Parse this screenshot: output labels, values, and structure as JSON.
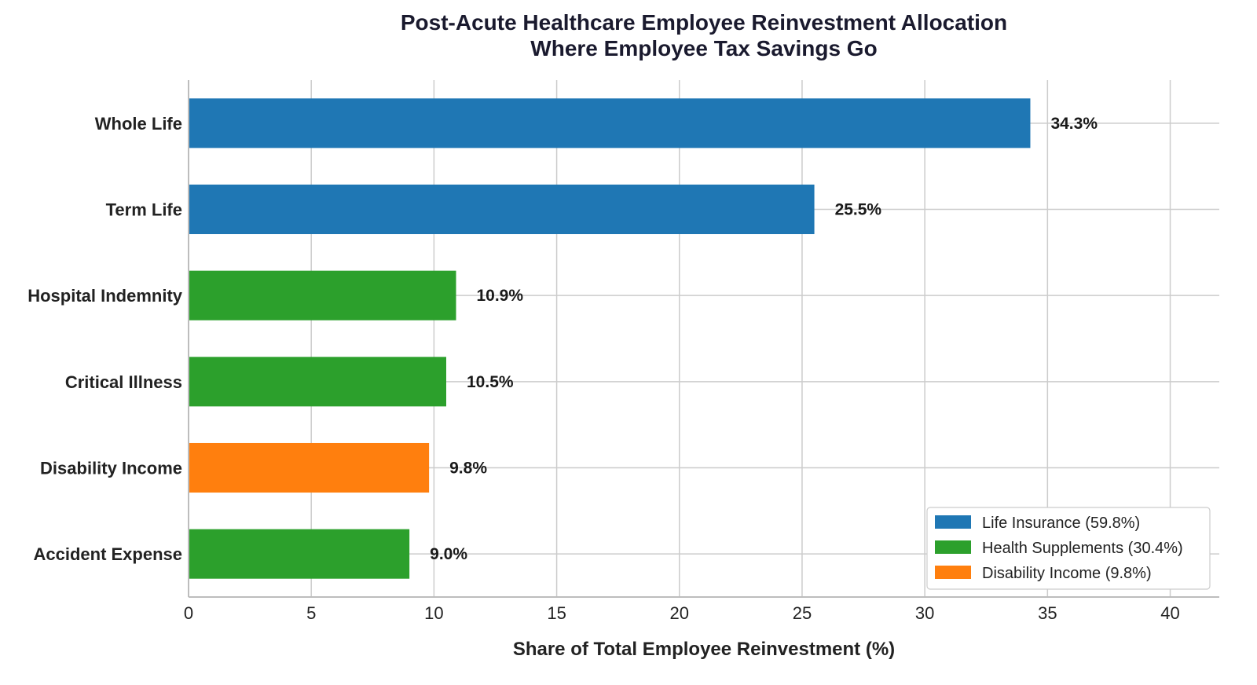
{
  "chart_data": {
    "type": "bar",
    "orientation": "horizontal",
    "title": "Post-Acute Healthcare Employee Reinvestment Allocation",
    "subtitle": "Where Employee Tax Savings Go",
    "xlabel": "Share of Total Employee Reinvestment (%)",
    "ylabel": "",
    "xlim": [
      0,
      42
    ],
    "xticks": [
      0,
      5,
      10,
      15,
      20,
      25,
      30,
      35,
      40
    ],
    "grid": true,
    "legend_position": "bottom-right",
    "categories": [
      "Whole Life",
      "Term Life",
      "Hospital Indemnity",
      "Critical Illness",
      "Disability Income",
      "Accident Expense"
    ],
    "values": [
      34.3,
      25.5,
      10.9,
      10.5,
      9.8,
      9.0
    ],
    "value_labels": [
      "34.3%",
      "25.5%",
      "10.9%",
      "10.5%",
      "9.8%",
      "9.0%"
    ],
    "bar_groups": [
      "Life Insurance",
      "Life Insurance",
      "Health Supplements",
      "Health Supplements",
      "Disability Income",
      "Health Supplements"
    ],
    "groups": [
      {
        "name": "Life Insurance",
        "color": "#1f77b4",
        "legend_label": "Life Insurance (59.8%)"
      },
      {
        "name": "Health Supplements",
        "color": "#2ca02c",
        "legend_label": "Health Supplements (30.4%)"
      },
      {
        "name": "Disability Income",
        "color": "#ff7f0e",
        "legend_label": "Disability Income (9.8%)"
      }
    ]
  }
}
